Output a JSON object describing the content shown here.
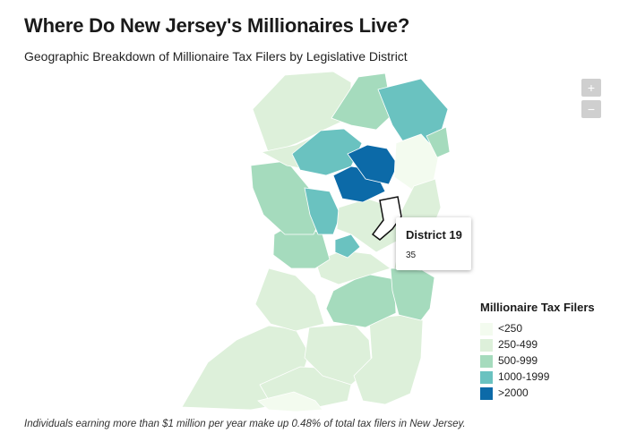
{
  "title": "Where Do New Jersey's Millionaires Live?",
  "subtitle": "Geographic Breakdown of Millionaire Tax Filers by Legislative District",
  "zoom": {
    "in_label": "+",
    "out_label": "−"
  },
  "tooltip": {
    "district": "District 19",
    "value": "35"
  },
  "legend": {
    "title": "Millionaire Tax Filers",
    "items": [
      {
        "label": "<250",
        "color": "#f3fbef"
      },
      {
        "label": "250-499",
        "color": "#ddf0da"
      },
      {
        "label": "500-999",
        "color": "#a5dbbd"
      },
      {
        "label": "1000-1999",
        "color": "#6ac2c0"
      },
      {
        "label": ">2000",
        "color": "#0c6aa8"
      }
    ]
  },
  "footnote": "Individuals earning more than $1 million per year make up 0.48% of total tax filers in New Jersey."
}
